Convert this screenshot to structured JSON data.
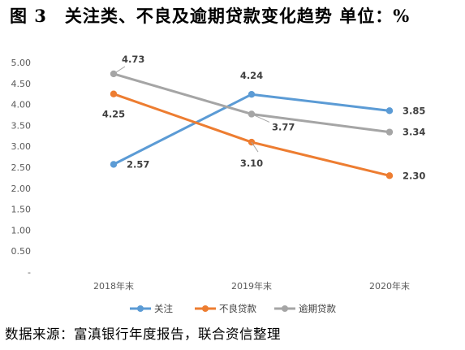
{
  "title": "图 3　关注类、不良及逾期贷款变化趋势 单位：%",
  "source": "数据来源：富滇银行年度报告，联合资信整理",
  "chart_data": {
    "type": "line",
    "categories": [
      "2018年末",
      "2019年末",
      "2020年末"
    ],
    "ylim": [
      0,
      5
    ],
    "yticks": [
      "5.00",
      "4.50",
      "4.00",
      "3.50",
      "3.00",
      "2.50",
      "2.00",
      "1.50",
      "1.00",
      "0.50",
      "-"
    ],
    "grid": false,
    "legend_position": "bottom",
    "series": [
      {
        "name": "关注",
        "values": [
          2.57,
          4.24,
          3.85
        ],
        "labels": [
          "2.57",
          "4.24",
          "3.85"
        ],
        "color": "#5B9BD5"
      },
      {
        "name": "不良贷款",
        "values": [
          4.25,
          3.1,
          2.3
        ],
        "labels": [
          "4.25",
          "3.10",
          "2.30"
        ],
        "color": "#ED7D31"
      },
      {
        "name": "逾期贷款",
        "values": [
          4.73,
          3.77,
          3.34
        ],
        "labels": [
          "4.73",
          "3.77",
          "3.34"
        ],
        "color": "#A5A5A5"
      }
    ]
  }
}
